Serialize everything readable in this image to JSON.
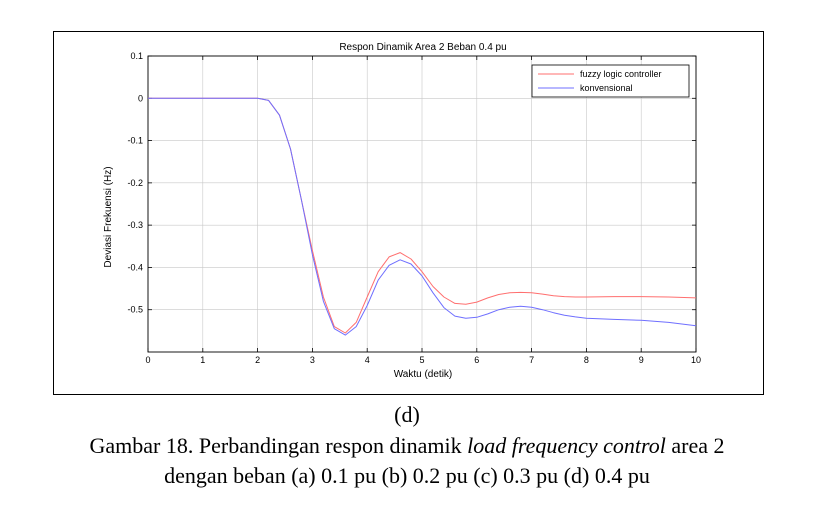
{
  "chart_data": {
    "type": "line",
    "title": "Respon Dinamik Area 2 Beban 0.4 pu",
    "xlabel": "Waktu (detik)",
    "ylabel": "Deviasi Frekuensi (Hz)",
    "xlim": [
      0,
      10
    ],
    "ylim": [
      -0.6,
      0.1
    ],
    "x_ticks": [
      "0",
      "1",
      "2",
      "3",
      "4",
      "5",
      "6",
      "7",
      "8",
      "9",
      "10"
    ],
    "y_ticks": [
      "0.1",
      "0",
      "-0.1",
      "-0.2",
      "-0.3",
      "-0.4",
      "-0.5"
    ],
    "grid": true,
    "legend_position": "top-right",
    "series": [
      {
        "name": "fuzzy logic controller",
        "color": "#ff6f6f",
        "x": [
          0,
          1,
          2,
          2.2,
          2.4,
          2.6,
          2.8,
          3.0,
          3.2,
          3.4,
          3.6,
          3.8,
          4.0,
          4.2,
          4.4,
          4.6,
          4.8,
          5.0,
          5.2,
          5.4,
          5.6,
          5.8,
          6.0,
          6.2,
          6.4,
          6.6,
          6.8,
          7.0,
          7.2,
          7.4,
          7.6,
          7.8,
          8.0,
          8.5,
          9.0,
          9.5,
          10.0
        ],
        "y": [
          0,
          0,
          0,
          -0.005,
          -0.04,
          -0.12,
          -0.24,
          -0.36,
          -0.47,
          -0.54,
          -0.555,
          -0.53,
          -0.47,
          -0.41,
          -0.375,
          -0.365,
          -0.38,
          -0.41,
          -0.445,
          -0.47,
          -0.485,
          -0.487,
          -0.482,
          -0.472,
          -0.464,
          -0.46,
          -0.459,
          -0.46,
          -0.463,
          -0.467,
          -0.469,
          -0.47,
          -0.47,
          -0.469,
          -0.469,
          -0.47,
          -0.472
        ]
      },
      {
        "name": "konvensional",
        "color": "#6f6fff",
        "x": [
          0,
          1,
          2,
          2.2,
          2.4,
          2.6,
          2.8,
          3.0,
          3.2,
          3.4,
          3.6,
          3.8,
          4.0,
          4.2,
          4.4,
          4.6,
          4.8,
          5.0,
          5.2,
          5.4,
          5.6,
          5.8,
          6.0,
          6.2,
          6.4,
          6.6,
          6.8,
          7.0,
          7.2,
          7.4,
          7.6,
          7.8,
          8.0,
          8.5,
          9.0,
          9.5,
          10.0
        ],
        "y": [
          0,
          0,
          0,
          -0.005,
          -0.04,
          -0.12,
          -0.24,
          -0.37,
          -0.48,
          -0.545,
          -0.56,
          -0.54,
          -0.49,
          -0.43,
          -0.395,
          -0.382,
          -0.392,
          -0.42,
          -0.46,
          -0.495,
          -0.515,
          -0.52,
          -0.518,
          -0.51,
          -0.5,
          -0.494,
          -0.492,
          -0.494,
          -0.5,
          -0.507,
          -0.513,
          -0.517,
          -0.52,
          -0.523,
          -0.525,
          -0.53,
          -0.538
        ]
      }
    ]
  },
  "caption": {
    "panel_label": "(d)",
    "line1_prefix": "Gambar 18. Perbandingan respon dinamik ",
    "line1_italic": "load frequency control",
    "line1_suffix": " area 2",
    "line2": "dengan beban (a) 0.1 pu (b) 0.2 pu (c) 0.3 pu (d) 0.4 pu"
  }
}
